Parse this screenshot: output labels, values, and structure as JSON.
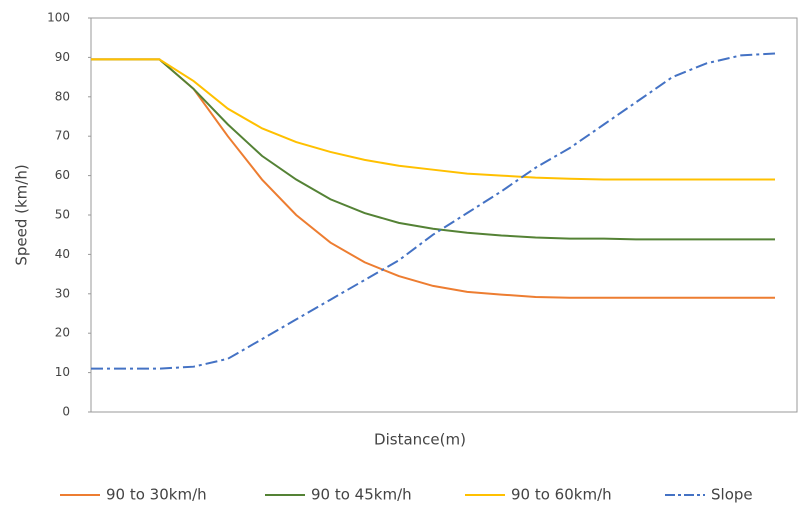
{
  "chart_data": {
    "type": "line",
    "xlabel": "Distance(m)",
    "ylabel": "Speed (km/h)",
    "ylim": [
      0,
      100
    ],
    "yticks": [
      0,
      10,
      20,
      30,
      40,
      50,
      60,
      70,
      80,
      90,
      100
    ],
    "legend": "bottom",
    "series": [
      {
        "name": "90 to 30km/h",
        "color": "#ed7d31",
        "values": [
          89.5,
          89.5,
          89.5,
          82,
          70,
          59,
          50,
          43,
          38,
          34.5,
          32,
          30.5,
          29.8,
          29.2,
          29,
          29,
          29,
          29,
          29,
          29,
          29
        ]
      },
      {
        "name": "90 to 45km/h",
        "color": "#548235",
        "values": [
          89.5,
          89.5,
          89.5,
          82,
          73,
          65,
          59,
          54,
          50.5,
          48,
          46.5,
          45.5,
          44.8,
          44.3,
          44,
          44,
          43.8,
          43.8,
          43.8,
          43.8,
          43.8
        ]
      },
      {
        "name": "90 to 60km/h",
        "color": "#ffc000",
        "values": [
          89.5,
          89.5,
          89.5,
          84,
          77,
          72,
          68.5,
          66,
          64,
          62.5,
          61.5,
          60.5,
          60,
          59.5,
          59.2,
          59,
          59,
          59,
          59,
          59,
          59
        ]
      },
      {
        "name": "Slope",
        "color": "#4472c4",
        "dash": "dashdot",
        "values": [
          11,
          11,
          11,
          11.5,
          13.5,
          18.5,
          23.5,
          28.5,
          33.5,
          38.5,
          45,
          50.5,
          56,
          62,
          67,
          73,
          79,
          85,
          88.5,
          90.5,
          91
        ]
      }
    ]
  }
}
